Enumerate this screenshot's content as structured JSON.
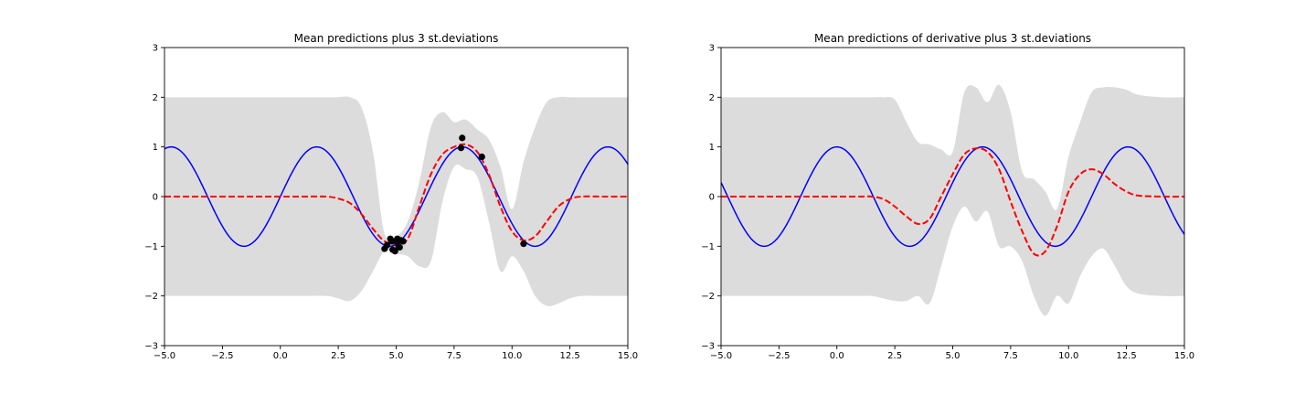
{
  "chart_data": [
    {
      "type": "line",
      "title": "Mean predictions plus 3 st.deviations",
      "xlim": [
        -5,
        15
      ],
      "ylim": [
        -3,
        3
      ],
      "x_ticks": [
        -5,
        -2.5,
        0,
        2.5,
        5,
        7.5,
        10,
        12.5,
        15
      ],
      "x_tick_labels": [
        "−5.0",
        "−2.5",
        "0.0",
        "2.5",
        "5.0",
        "7.5",
        "10.0",
        "12.5",
        "15.0"
      ],
      "y_ticks": [
        -3,
        -2,
        -1,
        0,
        1,
        2,
        3
      ],
      "y_tick_labels": [
        "−3",
        "−2",
        "−1",
        "0",
        "1",
        "2",
        "3"
      ],
      "grid": false,
      "colors": {
        "band": "#dcdcdc",
        "truth": "#0000ff",
        "mean": "#ff0000",
        "observations": "#000000"
      },
      "x": [
        -5,
        -4,
        -3,
        -2,
        -1,
        0,
        1,
        2,
        2.5,
        3,
        3.5,
        4,
        4.5,
        5,
        5.5,
        6,
        6.5,
        7,
        7.5,
        8,
        8.5,
        9,
        9.5,
        10,
        10.5,
        11,
        11.5,
        12,
        12.5,
        13,
        14,
        15
      ],
      "series": [
        {
          "role": "true_function",
          "function": "sin",
          "x_start": -5,
          "x_end": 15
        },
        {
          "role": "mean",
          "values": [
            0,
            0,
            0,
            0,
            0,
            0,
            0,
            0,
            -0.04,
            -0.13,
            -0.35,
            -0.65,
            -0.9,
            -0.95,
            -0.85,
            -0.2,
            0.45,
            0.85,
            1.0,
            1.05,
            0.9,
            0.45,
            -0.2,
            -0.7,
            -0.88,
            -0.8,
            -0.5,
            -0.2,
            -0.05,
            0,
            0,
            0
          ]
        },
        {
          "role": "band_upper",
          "values": [
            2,
            2,
            2,
            2,
            2,
            2,
            2,
            2,
            2,
            2,
            1.8,
            0.9,
            -0.75,
            -0.8,
            -0.5,
            0.3,
            1.4,
            1.7,
            1.5,
            1.55,
            1.35,
            1.15,
            0.6,
            -0.25,
            0.7,
            1.4,
            1.9,
            2,
            2,
            2,
            2,
            2
          ]
        },
        {
          "role": "band_lower",
          "values": [
            -2,
            -2,
            -2,
            -2,
            -2,
            -2,
            -2,
            -2,
            -2.05,
            -2.1,
            -1.9,
            -1.5,
            -1.1,
            -1.15,
            -1.2,
            -1.4,
            -1.3,
            -0.1,
            0.6,
            0.55,
            0.4,
            -0.5,
            -1.5,
            -1.2,
            -1.5,
            -2.0,
            -2.2,
            -2.15,
            -2.05,
            -2,
            -2,
            -2
          ]
        }
      ],
      "points": [
        {
          "x": 4.5,
          "y": -1.05
        },
        {
          "x": 4.6,
          "y": -0.98
        },
        {
          "x": 4.75,
          "y": -0.85
        },
        {
          "x": 4.8,
          "y": -0.9
        },
        {
          "x": 4.85,
          "y": -1.07
        },
        {
          "x": 4.95,
          "y": -1.1
        },
        {
          "x": 5.0,
          "y": -0.9
        },
        {
          "x": 5.05,
          "y": -0.85
        },
        {
          "x": 5.1,
          "y": -1.0
        },
        {
          "x": 5.15,
          "y": -1.02
        },
        {
          "x": 5.2,
          "y": -0.88
        },
        {
          "x": 5.3,
          "y": -0.9
        },
        {
          "x": 7.8,
          "y": 0.98
        },
        {
          "x": 7.85,
          "y": 1.18
        },
        {
          "x": 8.7,
          "y": 0.8
        },
        {
          "x": 10.5,
          "y": -0.95
        }
      ]
    },
    {
      "type": "line",
      "title": "Mean predictions of derivative plus 3 st.deviations",
      "xlim": [
        -5,
        15
      ],
      "ylim": [
        -3,
        3
      ],
      "x_ticks": [
        -5,
        -2.5,
        0,
        2.5,
        5,
        7.5,
        10,
        12.5,
        15
      ],
      "x_tick_labels": [
        "−5.0",
        "−2.5",
        "0.0",
        "2.5",
        "5.0",
        "7.5",
        "10.0",
        "12.5",
        "15.0"
      ],
      "y_ticks": [
        -3,
        -2,
        -1,
        0,
        1,
        2,
        3
      ],
      "y_tick_labels": [
        "−3",
        "−2",
        "−1",
        "0",
        "1",
        "2",
        "3"
      ],
      "grid": false,
      "colors": {
        "band": "#dcdcdc",
        "truth": "#0000ff",
        "mean": "#ff0000"
      },
      "x": [
        -5,
        -4,
        -3,
        -2,
        -1,
        0,
        1,
        1.5,
        2,
        2.5,
        3,
        3.5,
        4,
        4.5,
        5,
        5.5,
        6,
        6.5,
        7,
        7.5,
        8,
        8.5,
        9,
        9.5,
        10,
        10.5,
        11,
        11.5,
        12,
        12.5,
        13,
        14,
        15
      ],
      "series": [
        {
          "role": "true_function",
          "function": "cos",
          "x_start": -5,
          "x_end": 15
        },
        {
          "role": "mean",
          "values": [
            0,
            0,
            0,
            0,
            0,
            0,
            0,
            0,
            -0.05,
            -0.2,
            -0.4,
            -0.55,
            -0.45,
            0,
            0.45,
            0.85,
            0.97,
            0.9,
            0.55,
            -0.1,
            -0.7,
            -1.15,
            -1.1,
            -0.6,
            0.1,
            0.45,
            0.55,
            0.45,
            0.25,
            0.1,
            0.02,
            0,
            0
          ]
        },
        {
          "role": "band_upper",
          "values": [
            2,
            2,
            2,
            2,
            2,
            2,
            2,
            2,
            2,
            1.95,
            1.5,
            1.1,
            1.05,
            0.95,
            0.9,
            2.1,
            2.2,
            1.9,
            2.25,
            1.7,
            0.5,
            0.35,
            0.1,
            -0.25,
            0.8,
            1.5,
            2.1,
            2.2,
            2.2,
            2.15,
            2.05,
            2,
            2
          ]
        },
        {
          "role": "band_lower",
          "values": [
            -2,
            -2,
            -2,
            -2,
            -2,
            -2,
            -2,
            -2,
            -2.05,
            -2.1,
            -2.1,
            -2.0,
            -2.15,
            -1.4,
            -0.6,
            -0.2,
            -0.5,
            -0.3,
            -1.0,
            -1.0,
            -1.3,
            -2.0,
            -2.4,
            -2.0,
            -2.15,
            -1.6,
            -1.2,
            -1.05,
            -1.4,
            -1.8,
            -1.95,
            -2,
            -2
          ]
        }
      ]
    }
  ]
}
